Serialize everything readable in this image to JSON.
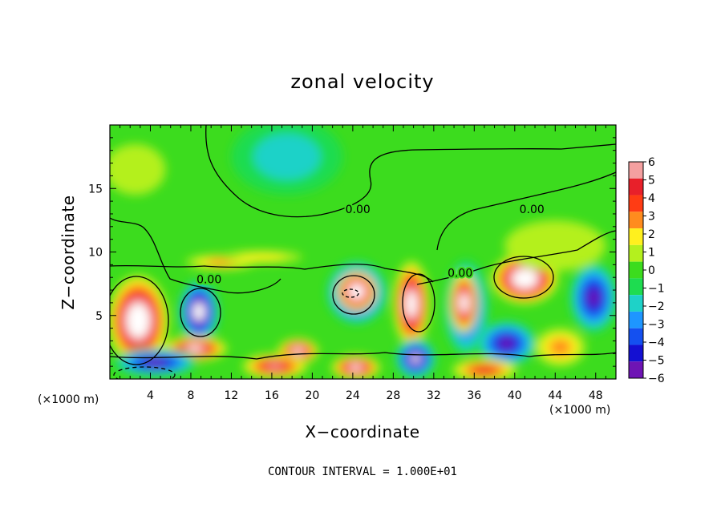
{
  "chart_data": {
    "type": "heatmap",
    "title": "zonal velocity",
    "xlabel": "X−coordinate",
    "ylabel": "Z−coordinate",
    "xunit_left": "(×1000 m)",
    "xunit_right": "(×1000 m)",
    "xlim": [
      0,
      50
    ],
    "ylim": [
      0,
      20
    ],
    "xticks": [
      4,
      8,
      12,
      16,
      20,
      24,
      28,
      32,
      36,
      40,
      44,
      48
    ],
    "xtick_labels": [
      "4",
      "8",
      "12",
      "16",
      "20",
      "24",
      "28",
      "32",
      "36",
      "40",
      "44",
      "48"
    ],
    "yticks": [
      5,
      10,
      15
    ],
    "ytick_labels": [
      "5",
      "10",
      "15"
    ],
    "colorbar": {
      "levels": [
        6,
        5,
        4,
        3,
        2,
        1,
        0,
        -1,
        -2,
        -3,
        -4,
        -5,
        -6
      ],
      "labels": [
        "6",
        "5",
        "4",
        "3",
        "2",
        "1",
        "0",
        "−1",
        "−2",
        "−3",
        "−4",
        "−5",
        "−6"
      ],
      "colors": [
        "#f4a0a0",
        "#e8202a",
        "#ff3c14",
        "#ff8c1e",
        "#fff01e",
        "#b4f01e",
        "#3cdc1e",
        "#1edc50",
        "#1ed2c8",
        "#1e96ff",
        "#1450f0",
        "#1410d2",
        "#6e14b4"
      ]
    },
    "contour_labels": [
      {
        "text": "0.00",
        "x": 24.5,
        "y": 13.3
      },
      {
        "text": "0.00",
        "x": 41.7,
        "y": 13.3
      },
      {
        "text": "0.00",
        "x": 9.8,
        "y": 7.8
      },
      {
        "text": "0.00",
        "x": 34.6,
        "y": 8.3
      }
    ],
    "features": [
      {
        "kind": "max",
        "x": 2.8,
        "y": 4.6,
        "rx": 3.0,
        "ry": 3.6,
        "v": 9
      },
      {
        "kind": "min",
        "x": 8.8,
        "y": 5.3,
        "rx": 2.0,
        "ry": 2.5,
        "v": -8
      },
      {
        "kind": "max",
        "x": 8.4,
        "y": 2.4,
        "rx": 3.2,
        "ry": 1.0,
        "v": 7
      },
      {
        "kind": "min",
        "x": 4.5,
        "y": 1.3,
        "rx": 4.2,
        "ry": 1.1,
        "v": -6
      },
      {
        "kind": "max",
        "x": 18.6,
        "y": 2.2,
        "rx": 2.0,
        "ry": 1.0,
        "v": 7
      },
      {
        "kind": "max",
        "x": 16.3,
        "y": 1.0,
        "rx": 3.2,
        "ry": 1.0,
        "v": 6
      },
      {
        "kind": "min",
        "x": 24.4,
        "y": 6.8,
        "rx": 3.0,
        "ry": 2.5,
        "v": -8
      },
      {
        "kind": "max",
        "x": 24.4,
        "y": 6.9,
        "rx": 2.0,
        "ry": 1.6,
        "v": 9
      },
      {
        "kind": "max",
        "x": 29.8,
        "y": 5.9,
        "rx": 1.8,
        "ry": 3.4,
        "v": 8
      },
      {
        "kind": "min",
        "x": 30.2,
        "y": 1.6,
        "rx": 2.0,
        "ry": 1.6,
        "v": -7
      },
      {
        "kind": "max",
        "x": 24.3,
        "y": 0.9,
        "rx": 2.4,
        "ry": 1.0,
        "v": 7
      },
      {
        "kind": "min",
        "x": 35.2,
        "y": 5.6,
        "rx": 2.2,
        "ry": 3.8,
        "v": -6
      },
      {
        "kind": "max",
        "x": 35.0,
        "y": 6.0,
        "rx": 1.4,
        "ry": 2.4,
        "v": 8
      },
      {
        "kind": "max",
        "x": 41.0,
        "y": 7.9,
        "rx": 3.3,
        "ry": 2.0,
        "v": 9
      },
      {
        "kind": "min",
        "x": 39.2,
        "y": 2.8,
        "rx": 3.0,
        "ry": 1.8,
        "v": -6
      },
      {
        "kind": "max",
        "x": 37.0,
        "y": 0.7,
        "rx": 3.2,
        "ry": 0.9,
        "v": 5
      },
      {
        "kind": "min",
        "x": 47.8,
        "y": 6.4,
        "rx": 2.4,
        "ry": 2.8,
        "v": -6
      },
      {
        "kind": "max",
        "x": 44.5,
        "y": 2.5,
        "rx": 2.5,
        "ry": 1.5,
        "v": 3
      },
      {
        "kind": "max",
        "x": 11.0,
        "y": 9.2,
        "rx": 3.5,
        "ry": 0.6,
        "v": 3
      },
      {
        "kind": "max",
        "x": 15.0,
        "y": 9.6,
        "rx": 4.0,
        "ry": 0.5,
        "v": 2
      },
      {
        "kind": "min",
        "x": 17.5,
        "y": 17.5,
        "rx": 5.5,
        "ry": 3.0,
        "v": -2
      },
      {
        "kind": "max",
        "x": 2.5,
        "y": 16.5,
        "rx": 3.0,
        "ry": 2.0,
        "v": 1
      },
      {
        "kind": "max",
        "x": 44.0,
        "y": 10.5,
        "rx": 5.0,
        "ry": 2.0,
        "v": 1
      }
    ],
    "note": "CONTOUR INTERVAL = 1.000E+01"
  }
}
